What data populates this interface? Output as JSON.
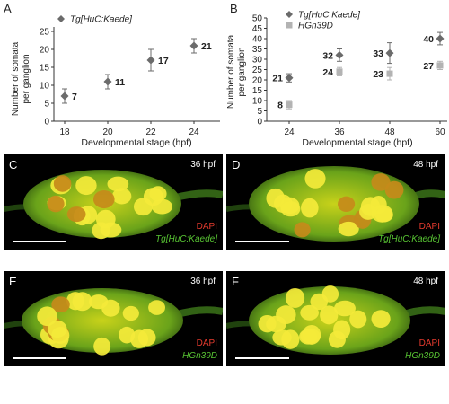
{
  "panels": {
    "a": "A",
    "b": "B",
    "c": "C",
    "d": "D",
    "e": "E",
    "f": "F"
  },
  "colors": {
    "series1": "#6b6b6b",
    "series2": "#b3b3b3",
    "dapi": "#e53b2e",
    "green_label": "#58c533"
  },
  "chart_data": [
    {
      "type": "scatter",
      "panel": "A",
      "xlabel": "Developmental stage (hpf)",
      "ylabel_line1": "Number of somata",
      "ylabel_line2": "per ganglion",
      "categories": [
        "18",
        "20",
        "22",
        "24"
      ],
      "ylim": [
        0,
        25
      ],
      "yticks": [
        "0",
        "5",
        "10",
        "15",
        "20",
        "25"
      ],
      "legend_placement": "top-left",
      "series": [
        {
          "name": "Tg[HuC:Kaede]",
          "marker": "diamond",
          "values": [
            7,
            11,
            17,
            21
          ],
          "errors": [
            2,
            2,
            3,
            2
          ],
          "labels": [
            "7",
            "11",
            "17",
            "21"
          ]
        }
      ]
    },
    {
      "type": "scatter",
      "panel": "B",
      "xlabel": "Developmental stage (hpf)",
      "ylabel_line1": "Number of somata",
      "ylabel_line2": "per ganglion",
      "categories": [
        "24",
        "36",
        "48",
        "60"
      ],
      "ylim": [
        0,
        50
      ],
      "yticks": [
        "0",
        "5",
        "10",
        "15",
        "20",
        "25",
        "30",
        "35",
        "40",
        "45",
        "50"
      ],
      "legend_placement": "top-left",
      "series": [
        {
          "name": "Tg[HuC:Kaede]",
          "marker": "diamond",
          "values": [
            21,
            32,
            33,
            40
          ],
          "errors": [
            2,
            3,
            5,
            3
          ],
          "labels": [
            "21",
            "32",
            "33",
            "40"
          ]
        },
        {
          "name": "HGn39D",
          "marker": "square",
          "values": [
            8,
            24,
            23,
            27
          ],
          "errors": [
            2,
            2,
            3,
            2
          ],
          "labels": [
            "8",
            "24",
            "23",
            "27"
          ]
        }
      ]
    }
  ],
  "micrographs": [
    {
      "letter": "C",
      "time": "36 hpf",
      "label1": "DAPI",
      "label2": "Tg[HuC:Kaede]"
    },
    {
      "letter": "D",
      "time": "48 hpf",
      "label1": "DAPI",
      "label2": "Tg[HuC:Kaede]"
    },
    {
      "letter": "E",
      "time": "36 hpf",
      "label1": "DAPI",
      "label2": "HGn39D"
    },
    {
      "letter": "F",
      "time": "48 hpf",
      "label1": "DAPI",
      "label2": "HGn39D"
    }
  ]
}
